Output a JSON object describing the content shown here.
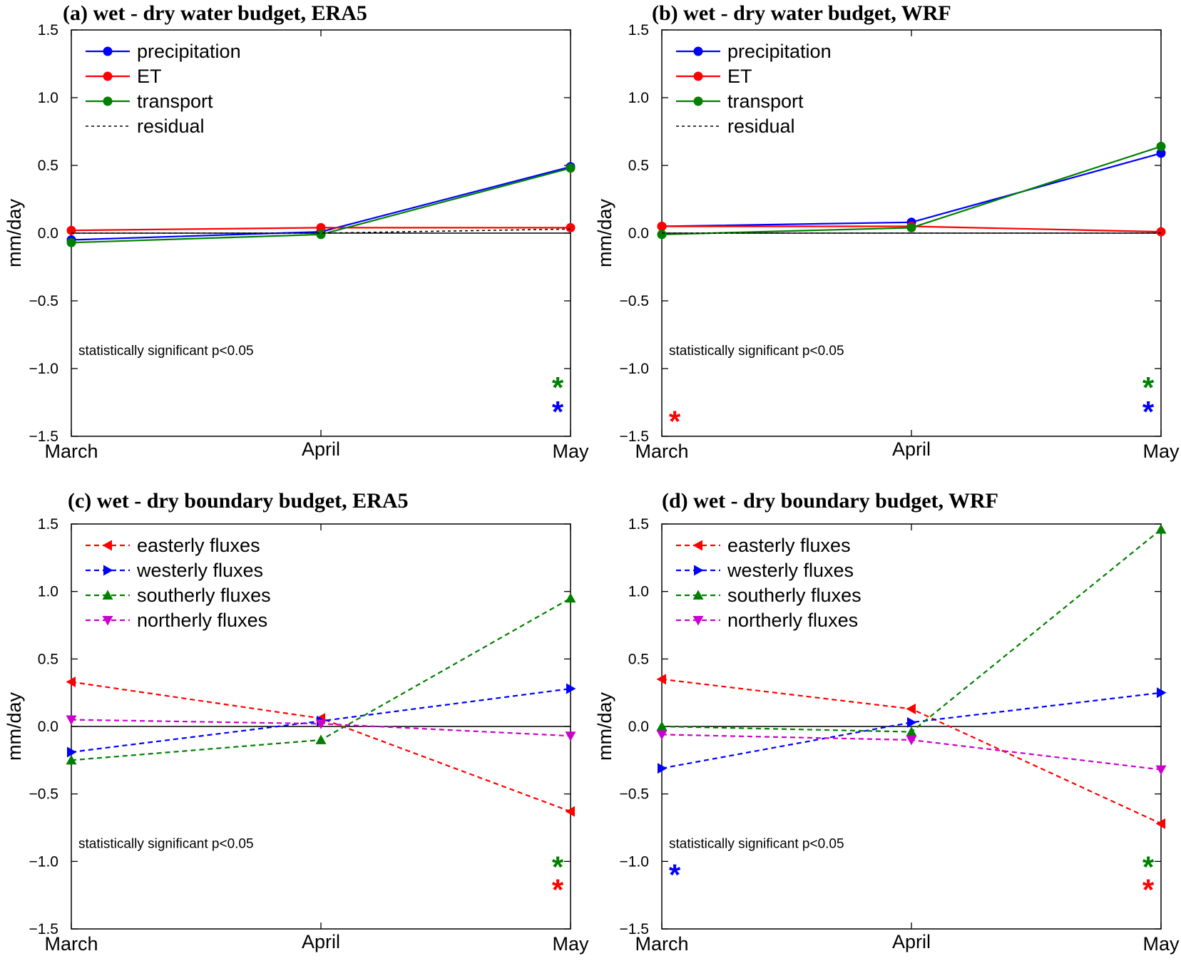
{
  "chart_data": [
    {
      "panel": "a",
      "type": "line",
      "title": "(a) wet - dry water budget, ERA5",
      "xlabel": "",
      "ylabel": "mm/day",
      "categories": [
        "March",
        "April",
        "May"
      ],
      "ylim": [
        -1.5,
        1.5
      ],
      "yticks": [
        "1.5",
        "1.0",
        "0.5",
        "0.0",
        "−0.5",
        "−1.0",
        "−1.5"
      ],
      "legend_position": "top-left",
      "note": "statistically significant p<0.05",
      "series": [
        {
          "name": "precipitation",
          "color": "#0000ff",
          "marker": "circle",
          "dash": "solid",
          "values": [
            -0.05,
            0.01,
            0.49
          ]
        },
        {
          "name": "ET",
          "color": "#ff0000",
          "marker": "circle",
          "dash": "solid",
          "values": [
            0.02,
            0.04,
            0.04
          ]
        },
        {
          "name": "transport",
          "color": "#008000",
          "marker": "circle",
          "dash": "solid",
          "values": [
            -0.07,
            -0.01,
            0.48
          ]
        },
        {
          "name": "residual",
          "color": "#000000",
          "marker": "none",
          "dash": "dotted",
          "values": [
            0.0,
            0.0,
            0.03
          ]
        }
      ],
      "significance": [
        {
          "category": "May",
          "color": "#008000",
          "level": -1.1
        },
        {
          "category": "May",
          "color": "#0000ff",
          "level": -1.28
        }
      ]
    },
    {
      "panel": "b",
      "type": "line",
      "title": "(b) wet - dry water budget, WRF",
      "xlabel": "",
      "ylabel": "mm/day",
      "categories": [
        "March",
        "April",
        "May"
      ],
      "ylim": [
        -1.5,
        1.5
      ],
      "yticks": [
        "1.5",
        "1.0",
        "0.5",
        "0.0",
        "−0.5",
        "−1.0",
        "−1.5"
      ],
      "legend_position": "top-left",
      "note": "statistically significant p<0.05",
      "series": [
        {
          "name": "precipitation",
          "color": "#0000ff",
          "marker": "circle",
          "dash": "solid",
          "values": [
            0.05,
            0.08,
            0.59
          ]
        },
        {
          "name": "ET",
          "color": "#ff0000",
          "marker": "circle",
          "dash": "solid",
          "values": [
            0.05,
            0.05,
            0.01
          ]
        },
        {
          "name": "transport",
          "color": "#008000",
          "marker": "circle",
          "dash": "solid",
          "values": [
            -0.01,
            0.04,
            0.64
          ]
        },
        {
          "name": "residual",
          "color": "#000000",
          "marker": "none",
          "dash": "dotted",
          "values": [
            0.0,
            0.0,
            0.0
          ]
        }
      ],
      "significance": [
        {
          "category": "March",
          "color": "#ff0000",
          "level": -1.35
        },
        {
          "category": "May",
          "color": "#008000",
          "level": -1.1
        },
        {
          "category": "May",
          "color": "#0000ff",
          "level": -1.28
        }
      ]
    },
    {
      "panel": "c",
      "type": "line",
      "title": "(c) wet - dry boundary budget, ERA5",
      "xlabel": "",
      "ylabel": "mm/day",
      "categories": [
        "March",
        "April",
        "May"
      ],
      "ylim": [
        -1.5,
        1.5
      ],
      "yticks": [
        "1.5",
        "1.0",
        "0.5",
        "0.0",
        "−0.5",
        "−1.0",
        "−1.5"
      ],
      "legend_position": "top-left",
      "note": "statistically significant p<0.05",
      "series": [
        {
          "name": "easterly fluxes",
          "color": "#ff0000",
          "marker": "triangle-left",
          "dash": "dashed",
          "values": [
            0.33,
            0.06,
            -0.63
          ]
        },
        {
          "name": "westerly fluxes",
          "color": "#0000ff",
          "marker": "triangle-right",
          "dash": "dashed",
          "values": [
            -0.19,
            0.04,
            0.28
          ]
        },
        {
          "name": "southerly fluxes",
          "color": "#008000",
          "marker": "triangle-up",
          "dash": "dashed",
          "values": [
            -0.25,
            -0.1,
            0.95
          ]
        },
        {
          "name": "northerly fluxes",
          "color": "#cc00cc",
          "marker": "triangle-down",
          "dash": "dashed",
          "values": [
            0.05,
            0.02,
            -0.07
          ]
        }
      ],
      "significance": [
        {
          "category": "May",
          "color": "#008000",
          "level": -1.0
        },
        {
          "category": "May",
          "color": "#ff0000",
          "level": -1.17
        }
      ]
    },
    {
      "panel": "d",
      "type": "line",
      "title": "(d) wet - dry boundary budget, WRF",
      "xlabel": "",
      "ylabel": "mm/day",
      "categories": [
        "March",
        "April",
        "May"
      ],
      "ylim": [
        -1.5,
        1.5
      ],
      "yticks": [
        "1.5",
        "1.0",
        "0.5",
        "0.0",
        "−0.5",
        "−1.0",
        "−1.5"
      ],
      "legend_position": "top-left",
      "note": "statistically significant p<0.05",
      "series": [
        {
          "name": "easterly fluxes",
          "color": "#ff0000",
          "marker": "triangle-left",
          "dash": "dashed",
          "values": [
            0.35,
            0.13,
            -0.72
          ]
        },
        {
          "name": "westerly fluxes",
          "color": "#0000ff",
          "marker": "triangle-right",
          "dash": "dashed",
          "values": [
            -0.31,
            0.03,
            0.25
          ]
        },
        {
          "name": "southerly fluxes",
          "color": "#008000",
          "marker": "triangle-up",
          "dash": "dashed",
          "values": [
            0.0,
            -0.04,
            1.46
          ]
        },
        {
          "name": "northerly fluxes",
          "color": "#cc00cc",
          "marker": "triangle-down",
          "dash": "dashed",
          "values": [
            -0.06,
            -0.1,
            -0.32
          ]
        }
      ],
      "significance": [
        {
          "category": "March",
          "color": "#0000ff",
          "level": -1.06
        },
        {
          "category": "May",
          "color": "#008000",
          "level": -1.0
        },
        {
          "category": "May",
          "color": "#ff0000",
          "level": -1.17
        }
      ]
    }
  ]
}
